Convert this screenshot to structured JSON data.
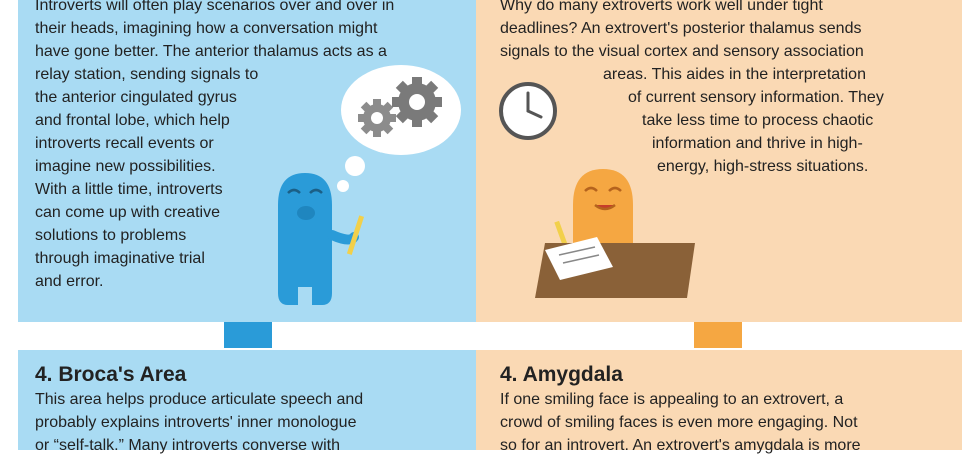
{
  "introvert_top": {
    "lines": [
      "Introverts will often play scenarios over and over in",
      "their heads, imagining how a conversation might",
      "have gone better. The anterior thalamus acts as a",
      "relay station, sending signals to",
      "the anterior cingulated gyrus",
      "and frontal lobe, which help",
      "introverts recall events or",
      "imagine new possibilities.",
      "With a little time, introverts",
      "can come up with creative",
      "solutions to problems",
      "through imaginative trial",
      "and error."
    ]
  },
  "extrovert_top": {
    "lines": [
      "Why do many extroverts work well under tight",
      "deadlines? An extrovert's posterior thalamus sends",
      "signals to the visual cortex and sensory association",
      "areas. This aides in the interpretation",
      "of current sensory information. They",
      "take less time to process chaotic",
      "information and thrive in high-",
      "energy, high-stress situations."
    ]
  },
  "introvert_bottom": {
    "heading": "4.  Broca's Area",
    "lines": [
      "This area helps produce articulate speech and",
      "probably explains introverts' inner monologue",
      "or “self-talk.” Many introverts converse with"
    ]
  },
  "extrovert_bottom": {
    "heading": "4.  Amygdala",
    "lines": [
      "If one smiling face is appealing to an extrovert, a",
      "crowd of smiling faces is even more engaging. Not",
      "so for an introvert. An extrovert's amygdala is more"
    ]
  },
  "colors": {
    "introvert_bg": "#a9dbf3",
    "extrovert_bg": "#fad9b4",
    "introvert_accent": "#2a9bd8",
    "extrovert_accent": "#f5a742"
  }
}
